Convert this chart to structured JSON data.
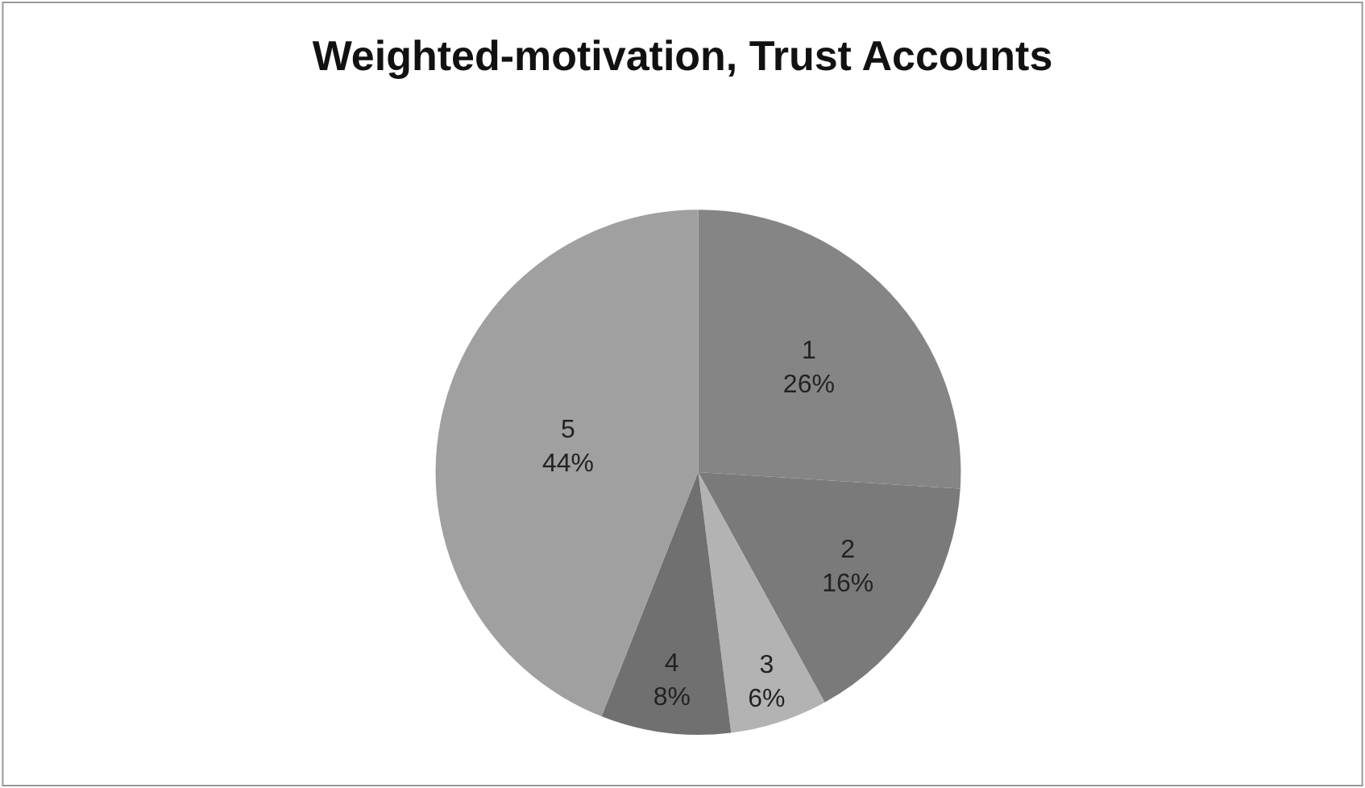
{
  "chart_data": {
    "type": "pie",
    "title": "Weighted-motivation, Trust Accounts",
    "categories": [
      "1",
      "2",
      "3",
      "4",
      "5"
    ],
    "values": [
      26,
      16,
      6,
      8,
      44
    ],
    "value_labels": [
      "26%",
      "16%",
      "6%",
      "8%",
      "44%"
    ],
    "colors": [
      "#858585",
      "#7a7a7a",
      "#b3b3b3",
      "#707070",
      "#a0a0a0"
    ],
    "legend": false
  }
}
